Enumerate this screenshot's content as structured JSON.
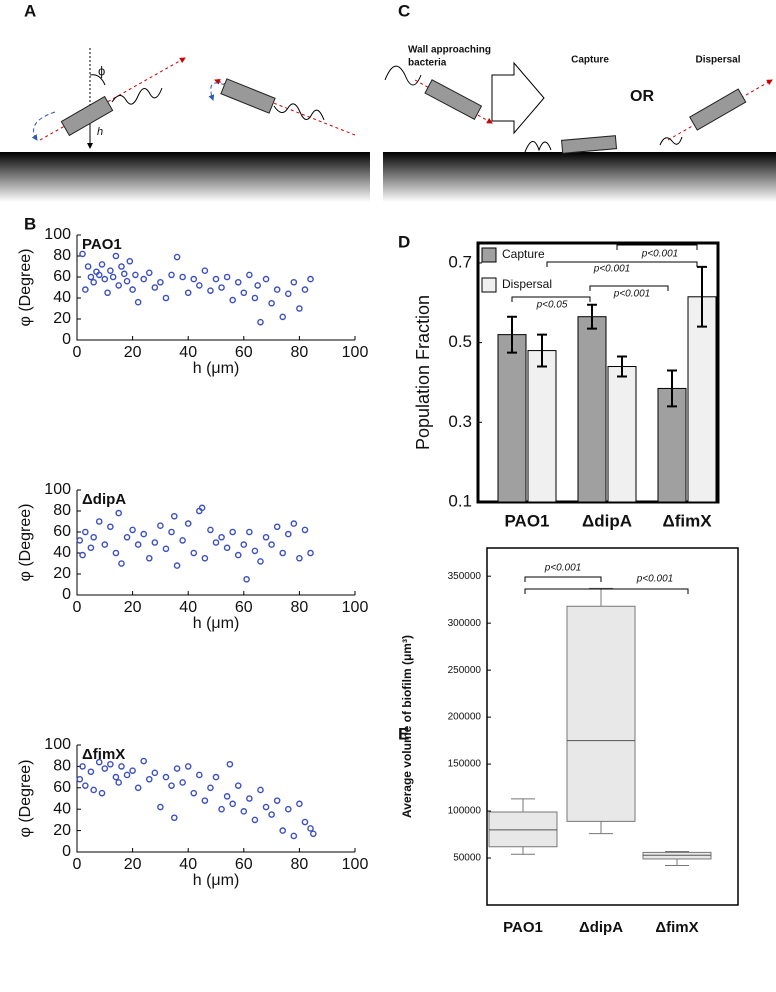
{
  "panel_labels": [
    "A",
    "B",
    "C",
    "D",
    "E"
  ],
  "diagram": {
    "phi": "ϕ",
    "h": "h",
    "approach": [
      "Wall approaching",
      "bacteria"
    ],
    "capture": "Capture",
    "or": "OR",
    "dispersal": "Dispersal"
  },
  "chart_data": [
    {
      "type": "scatter",
      "title": "PAO1",
      "xlabel": "h (μm)",
      "ylabel": "φ (Degree)",
      "color": "#3a4fc4",
      "xlim": [
        0,
        100
      ],
      "xticks": [
        0,
        20,
        40,
        60,
        80,
        100
      ],
      "ylim": [
        0,
        100
      ],
      "yticks": [
        0,
        20,
        40,
        60,
        80,
        100
      ],
      "x": [
        2,
        3,
        4,
        5,
        6,
        7,
        8,
        9,
        10,
        11,
        12,
        13,
        14,
        15,
        16,
        17,
        18,
        19,
        20,
        21,
        22,
        24,
        26,
        28,
        30,
        32,
        34,
        36,
        38,
        40,
        42,
        44,
        46,
        48,
        50,
        52,
        54,
        56,
        58,
        60,
        62,
        64,
        65,
        66,
        68,
        70,
        72,
        74,
        76,
        78,
        80,
        82,
        84
      ],
      "y": [
        82,
        48,
        70,
        60,
        55,
        65,
        62,
        72,
        58,
        45,
        66,
        60,
        80,
        52,
        70,
        63,
        56,
        75,
        48,
        62,
        36,
        58,
        64,
        50,
        55,
        40,
        62,
        79,
        60,
        45,
        58,
        52,
        66,
        47,
        58,
        50,
        60,
        38,
        55,
        45,
        62,
        40,
        52,
        17,
        58,
        35,
        48,
        22,
        44,
        55,
        30,
        48,
        58
      ]
    },
    {
      "type": "scatter",
      "title": "ΔdipA",
      "xlabel": "h (μm)",
      "ylabel": "φ (Degree)",
      "color": "#3a4fc4",
      "xlim": [
        0,
        100
      ],
      "xticks": [
        0,
        20,
        40,
        60,
        80,
        100
      ],
      "ylim": [
        0,
        100
      ],
      "yticks": [
        0,
        20,
        40,
        60,
        80,
        100
      ],
      "x": [
        1,
        2,
        3,
        5,
        6,
        8,
        10,
        12,
        14,
        15,
        16,
        18,
        20,
        22,
        24,
        26,
        28,
        30,
        32,
        34,
        35,
        36,
        38,
        40,
        42,
        44,
        45,
        46,
        48,
        50,
        52,
        54,
        56,
        58,
        60,
        61,
        62,
        64,
        66,
        68,
        70,
        72,
        74,
        76,
        78,
        80,
        82,
        84
      ],
      "y": [
        52,
        38,
        60,
        45,
        55,
        70,
        48,
        65,
        40,
        78,
        30,
        55,
        62,
        48,
        58,
        35,
        50,
        66,
        44,
        60,
        75,
        28,
        52,
        68,
        40,
        80,
        83,
        35,
        62,
        50,
        55,
        45,
        60,
        38,
        48,
        15,
        60,
        42,
        32,
        55,
        48,
        65,
        40,
        58,
        68,
        35,
        62,
        40
      ]
    },
    {
      "type": "scatter",
      "title": "ΔfimX",
      "xlabel": "h (μm)",
      "ylabel": "φ (Degree)",
      "color": "#3a4fc4",
      "xlim": [
        0,
        100
      ],
      "xticks": [
        0,
        20,
        40,
        60,
        80,
        100
      ],
      "ylim": [
        0,
        100
      ],
      "yticks": [
        0,
        20,
        40,
        60,
        80,
        100
      ],
      "x": [
        1,
        2,
        3,
        5,
        6,
        8,
        9,
        10,
        12,
        14,
        15,
        16,
        18,
        20,
        22,
        24,
        26,
        28,
        30,
        32,
        34,
        35,
        36,
        38,
        40,
        42,
        44,
        46,
        48,
        50,
        52,
        54,
        55,
        56,
        58,
        60,
        62,
        64,
        66,
        68,
        70,
        72,
        74,
        76,
        78,
        80,
        82,
        84,
        85
      ],
      "y": [
        68,
        80,
        62,
        75,
        58,
        84,
        55,
        78,
        82,
        70,
        65,
        80,
        72,
        76,
        60,
        85,
        68,
        74,
        42,
        70,
        62,
        32,
        78,
        65,
        80,
        55,
        72,
        48,
        60,
        70,
        40,
        52,
        82,
        45,
        62,
        38,
        50,
        30,
        58,
        42,
        35,
        48,
        20,
        40,
        15,
        45,
        28,
        22,
        17
      ]
    },
    {
      "type": "bar",
      "ylabel": "Population Fraction",
      "categories": [
        "PAO1",
        "ΔdipA",
        "ΔfimX"
      ],
      "ylim": [
        0.1,
        0.75
      ],
      "yticks": [
        0.1,
        0.3,
        0.5,
        0.7
      ],
      "series": [
        {
          "name": "Capture",
          "color": "#a0a0a0",
          "values": [
            0.52,
            0.565,
            0.385
          ],
          "errors": [
            0.045,
            0.03,
            0.045
          ]
        },
        {
          "name": "Dispersal",
          "color": "#f0f0f0",
          "values": [
            0.48,
            0.44,
            0.615
          ],
          "errors": [
            0.04,
            0.025,
            0.075
          ]
        }
      ],
      "annotations": [
        "p<0.001",
        "p<0.001",
        "p<0.001",
        "p<0.05"
      ]
    },
    {
      "type": "box",
      "ylabel": "Average volume of biofilm (μm³)",
      "categories": [
        "PAO1",
        "ΔdipA",
        "ΔfimX"
      ],
      "color": "#e8e8e8",
      "ylim": [
        0,
        380000
      ],
      "yticks": [
        50000,
        100000,
        150000,
        200000,
        250000,
        300000,
        350000
      ],
      "boxes": [
        {
          "min": 54000,
          "q1": 62000,
          "median": 80000,
          "q3": 99000,
          "max": 113000
        },
        {
          "min": 76000,
          "q1": 89000,
          "median": 175000,
          "q3": 318000,
          "max": 337000
        },
        {
          "min": 42000,
          "q1": 49000,
          "median": 53000,
          "q3": 56000,
          "max": 57000
        }
      ],
      "annotations": [
        "p<0.001",
        "p<0.001"
      ]
    }
  ]
}
